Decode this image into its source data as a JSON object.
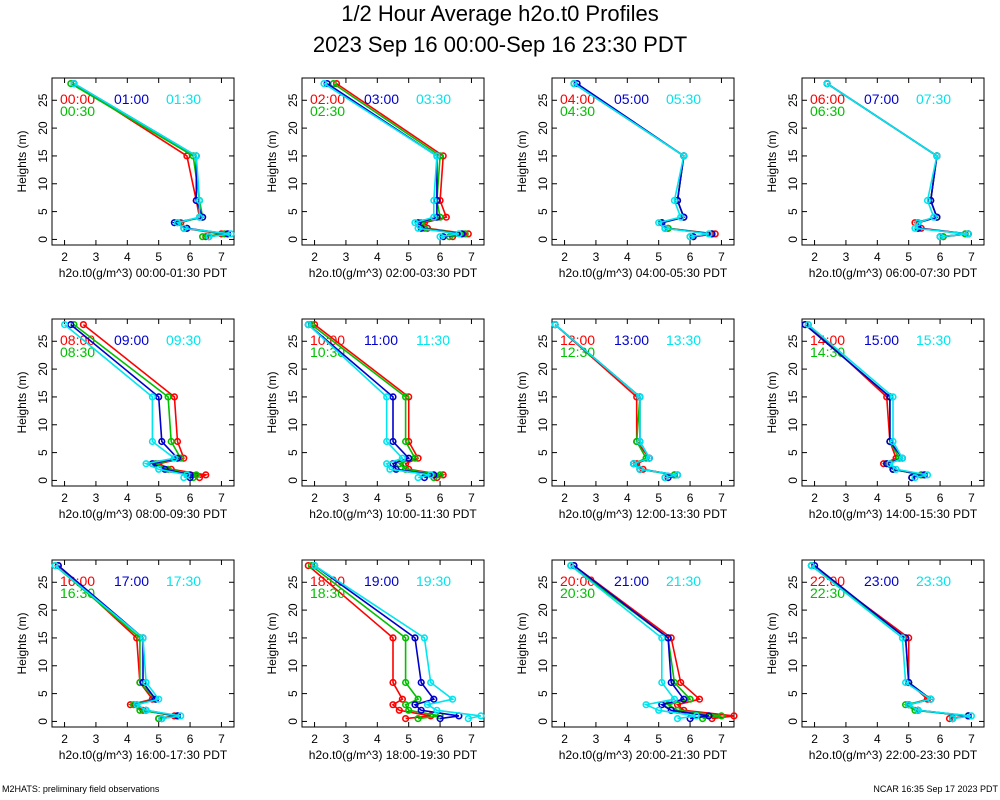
{
  "title": "1/2 Hour Average h2o.t0 Profiles",
  "subtitle": "2023 Sep 16 00:00-Sep 16 23:30 PDT",
  "footer_left": "M2HATS: preliminary field observations",
  "footer_right": "NCAR 16:35 Sep 17 2023 PDT",
  "colors": {
    "c0": "#ff0000",
    "c1": "#00c000",
    "c2": "#0000cc",
    "c3": "#00e5ee"
  },
  "chart_data": {
    "type": "line",
    "ylabel": "Heights (m)",
    "xlim": [
      1.6,
      7.4
    ],
    "ylim": [
      -1,
      29
    ],
    "xticks": [
      2,
      3,
      4,
      5,
      6,
      7
    ],
    "yticks": [
      0,
      5,
      10,
      15,
      20,
      25
    ],
    "heights": [
      0.5,
      1,
      2,
      3,
      4,
      7,
      15,
      28
    ],
    "panels": [
      {
        "xlabel": "h2o.t0(g/m^3) 00:00-01:30 PDT",
        "series": [
          {
            "name": "00:00",
            "values": [
              6.5,
              7.0,
              5.8,
              5.7,
              6.3,
              6.2,
              5.9,
              2.3
            ]
          },
          {
            "name": "00:30",
            "values": [
              6.4,
              7.1,
              5.9,
              5.6,
              6.4,
              6.3,
              6.1,
              2.2
            ]
          },
          {
            "name": "01:00",
            "values": [
              6.6,
              7.2,
              5.9,
              5.5,
              6.4,
              6.2,
              6.2,
              2.3
            ]
          },
          {
            "name": "01:30",
            "values": [
              6.6,
              7.3,
              5.8,
              5.6,
              6.3,
              6.3,
              6.2,
              2.3
            ]
          }
        ]
      },
      {
        "xlabel": "h2o.t0(g/m^3) 02:00-03:30 PDT",
        "series": [
          {
            "name": "02:00",
            "values": [
              6.4,
              6.9,
              5.6,
              5.5,
              6.2,
              6.0,
              6.1,
              2.7
            ]
          },
          {
            "name": "02:30",
            "values": [
              6.3,
              6.8,
              5.5,
              5.4,
              6.0,
              5.9,
              6.0,
              2.6
            ]
          },
          {
            "name": "03:00",
            "values": [
              6.1,
              6.7,
              5.4,
              5.3,
              5.9,
              5.9,
              5.9,
              2.4
            ]
          },
          {
            "name": "03:30",
            "values": [
              6.0,
              6.6,
              5.3,
              5.2,
              5.8,
              5.8,
              5.9,
              2.3
            ]
          }
        ]
      },
      {
        "xlabel": "h2o.t0(g/m^3) 04:00-05:30 PDT",
        "series": [
          {
            "name": "04:00",
            "values": [
              6.1,
              6.8,
              5.3,
              5.1,
              5.8,
              5.6,
              5.8,
              2.3
            ]
          },
          {
            "name": "04:30",
            "values": [
              6.0,
              6.7,
              5.3,
              5.1,
              5.8,
              5.6,
              5.8,
              2.3
            ]
          },
          {
            "name": "05:00",
            "values": [
              6.1,
              6.7,
              5.2,
              5.1,
              5.8,
              5.6,
              5.8,
              2.4
            ]
          },
          {
            "name": "05:30",
            "values": [
              6.0,
              6.6,
              5.2,
              5.0,
              5.7,
              5.5,
              5.8,
              2.3
            ]
          }
        ]
      },
      {
        "xlabel": "h2o.t0(g/m^3) 06:00-07:30 PDT",
        "series": [
          {
            "name": "06:00",
            "values": [
              6.1,
              6.9,
              5.4,
              5.2,
              5.9,
              5.7,
              5.9,
              2.4
            ]
          },
          {
            "name": "06:30",
            "values": [
              6.1,
              6.8,
              5.3,
              5.3,
              5.9,
              5.7,
              5.9,
              2.4
            ]
          },
          {
            "name": "07:00",
            "values": [
              6.0,
              6.9,
              5.3,
              5.3,
              5.9,
              5.7,
              5.9,
              2.4
            ]
          },
          {
            "name": "07:30",
            "values": [
              6.0,
              6.9,
              5.2,
              5.3,
              5.8,
              5.6,
              5.9,
              2.4
            ]
          }
        ]
      },
      {
        "xlabel": "h2o.t0(g/m^3) 08:00-09:30 PDT",
        "series": [
          {
            "name": "08:00",
            "values": [
              6.3,
              6.5,
              5.4,
              5.0,
              5.8,
              5.6,
              5.5,
              2.6
            ]
          },
          {
            "name": "08:30",
            "values": [
              6.1,
              6.2,
              5.3,
              4.9,
              5.7,
              5.4,
              5.3,
              2.3
            ]
          },
          {
            "name": "09:00",
            "values": [
              6.0,
              6.0,
              5.2,
              4.8,
              5.6,
              5.1,
              5.0,
              2.2
            ]
          },
          {
            "name": "09:30",
            "values": [
              5.8,
              5.9,
              5.0,
              4.6,
              5.5,
              4.8,
              4.8,
              2.0
            ]
          }
        ]
      },
      {
        "xlabel": "h2o.t0(g/m^3) 10:00-11:30 PDT",
        "series": [
          {
            "name": "10:00",
            "values": [
              5.9,
              6.1,
              5.0,
              4.9,
              5.3,
              5.0,
              5.0,
              2.0
            ]
          },
          {
            "name": "10:30",
            "values": [
              5.8,
              6.0,
              4.9,
              4.7,
              5.2,
              4.9,
              4.9,
              1.9
            ]
          },
          {
            "name": "11:00",
            "values": [
              5.5,
              5.8,
              4.6,
              4.5,
              5.0,
              4.5,
              4.5,
              1.8
            ]
          },
          {
            "name": "11:30",
            "values": [
              5.3,
              5.7,
              4.4,
              4.3,
              4.8,
              4.3,
              4.3,
              1.8
            ]
          }
        ]
      },
      {
        "xlabel": "h2o.t0(g/m^3) 12:00-13:30 PDT",
        "series": [
          {
            "name": "12:00",
            "values": [
              5.2,
              5.5,
              4.5,
              4.3,
              4.7,
              4.3,
              4.3,
              1.7
            ]
          },
          {
            "name": "12:30",
            "values": [
              5.2,
              5.5,
              4.4,
              4.2,
              4.6,
              4.3,
              4.4,
              1.7
            ]
          },
          {
            "name": "13:00",
            "values": [
              5.3,
              5.6,
              4.4,
              4.2,
              4.7,
              4.4,
              4.4,
              1.7
            ]
          },
          {
            "name": "13:30",
            "values": [
              5.2,
              5.6,
              4.4,
              4.2,
              4.7,
              4.4,
              4.4,
              1.7
            ]
          }
        ]
      },
      {
        "xlabel": "h2o.t0(g/m^3) 14:00-15:30 PDT",
        "series": [
          {
            "name": "14:00",
            "values": [
              5.1,
              5.4,
              4.5,
              4.2,
              4.6,
              4.4,
              4.3,
              1.8
            ]
          },
          {
            "name": "14:30",
            "values": [
              5.1,
              5.4,
              4.5,
              4.3,
              4.7,
              4.4,
              4.4,
              1.7
            ]
          },
          {
            "name": "15:00",
            "values": [
              5.1,
              5.5,
              4.5,
              4.3,
              4.8,
              4.4,
              4.4,
              1.7
            ]
          },
          {
            "name": "15:30",
            "values": [
              5.2,
              5.6,
              4.6,
              4.4,
              4.8,
              4.5,
              4.5,
              1.8
            ]
          }
        ]
      },
      {
        "xlabel": "h2o.t0(g/m^3) 16:00-17:30 PDT",
        "series": [
          {
            "name": "16:00",
            "values": [
              5.0,
              5.5,
              4.5,
              4.1,
              4.8,
              4.4,
              4.3,
              1.8
            ]
          },
          {
            "name": "16:30",
            "values": [
              5.0,
              5.6,
              4.4,
              4.2,
              4.9,
              4.4,
              4.4,
              1.7
            ]
          },
          {
            "name": "17:00",
            "values": [
              5.1,
              5.6,
              4.6,
              4.3,
              4.9,
              4.5,
              4.5,
              1.8
            ]
          },
          {
            "name": "17:30",
            "values": [
              5.1,
              5.7,
              4.6,
              4.3,
              5.0,
              4.6,
              4.5,
              1.7
            ]
          }
        ]
      },
      {
        "xlabel": "h2o.t0(g/m^3) 18:00-19:30 PDT",
        "series": [
          {
            "name": "18:00",
            "values": [
              4.9,
              5.7,
              4.7,
              4.5,
              4.8,
              4.5,
              4.5,
              1.8
            ]
          },
          {
            "name": "18:30",
            "values": [
              5.3,
              6.0,
              5.0,
              4.9,
              5.3,
              4.9,
              4.9,
              1.9
            ]
          },
          {
            "name": "19:00",
            "values": [
              6.0,
              6.6,
              5.4,
              5.2,
              5.8,
              5.4,
              5.2,
              2.0
            ]
          },
          {
            "name": "19:30",
            "values": [
              6.9,
              7.3,
              5.9,
              5.6,
              6.4,
              5.7,
              5.5,
              2.0
            ]
          }
        ]
      },
      {
        "xlabel": "h2o.t0(g/m^3) 20:00-21:30 PDT",
        "series": [
          {
            "name": "20:00",
            "values": [
              6.7,
              7.4,
              5.8,
              5.6,
              6.3,
              5.7,
              5.4,
              2.3
            ]
          },
          {
            "name": "20:30",
            "values": [
              6.4,
              7.0,
              5.6,
              5.3,
              6.0,
              5.5,
              5.3,
              2.2
            ]
          },
          {
            "name": "21:00",
            "values": [
              6.0,
              6.6,
              5.4,
              5.1,
              5.8,
              5.4,
              5.3,
              2.3
            ]
          },
          {
            "name": "21:30",
            "values": [
              5.6,
              6.2,
              5.0,
              4.6,
              5.5,
              5.1,
              5.1,
              2.2
            ]
          }
        ]
      },
      {
        "xlabel": "h2o.t0(g/m^3) 22:00-23:30 PDT",
        "series": [
          {
            "name": "22:00",
            "values": [
              6.3,
              6.9,
              5.3,
              5.0,
              5.6,
              5.0,
              5.0,
              1.9
            ]
          },
          {
            "name": "22:30",
            "values": [
              6.4,
              6.9,
              5.2,
              4.9,
              5.7,
              5.0,
              4.9,
              1.9
            ]
          },
          {
            "name": "23:00",
            "values": [
              6.4,
              6.9,
              5.3,
              5.0,
              5.7,
              5.0,
              4.9,
              2.0
            ]
          },
          {
            "name": "23:30",
            "values": [
              6.4,
              7.0,
              5.3,
              5.0,
              5.7,
              4.9,
              4.8,
              1.9
            ]
          }
        ]
      }
    ]
  }
}
